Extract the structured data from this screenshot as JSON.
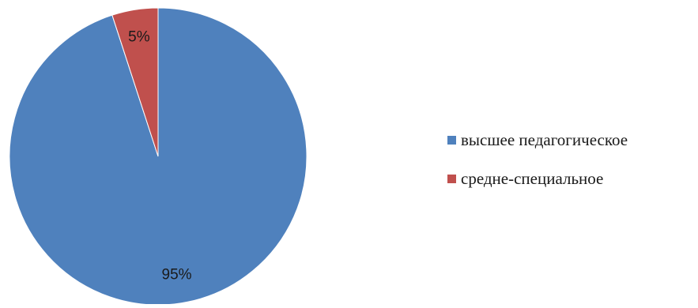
{
  "chart_data": {
    "type": "pie",
    "title": "",
    "slices": [
      {
        "name": "высшее педагогическое",
        "value": 95,
        "label": "95%",
        "color": "#4F81BD"
      },
      {
        "name": "средне-специальное",
        "value": 5,
        "label": "5%",
        "color": "#C0504D"
      }
    ],
    "legend_position": "right",
    "start_angle": "top, clockwise"
  }
}
